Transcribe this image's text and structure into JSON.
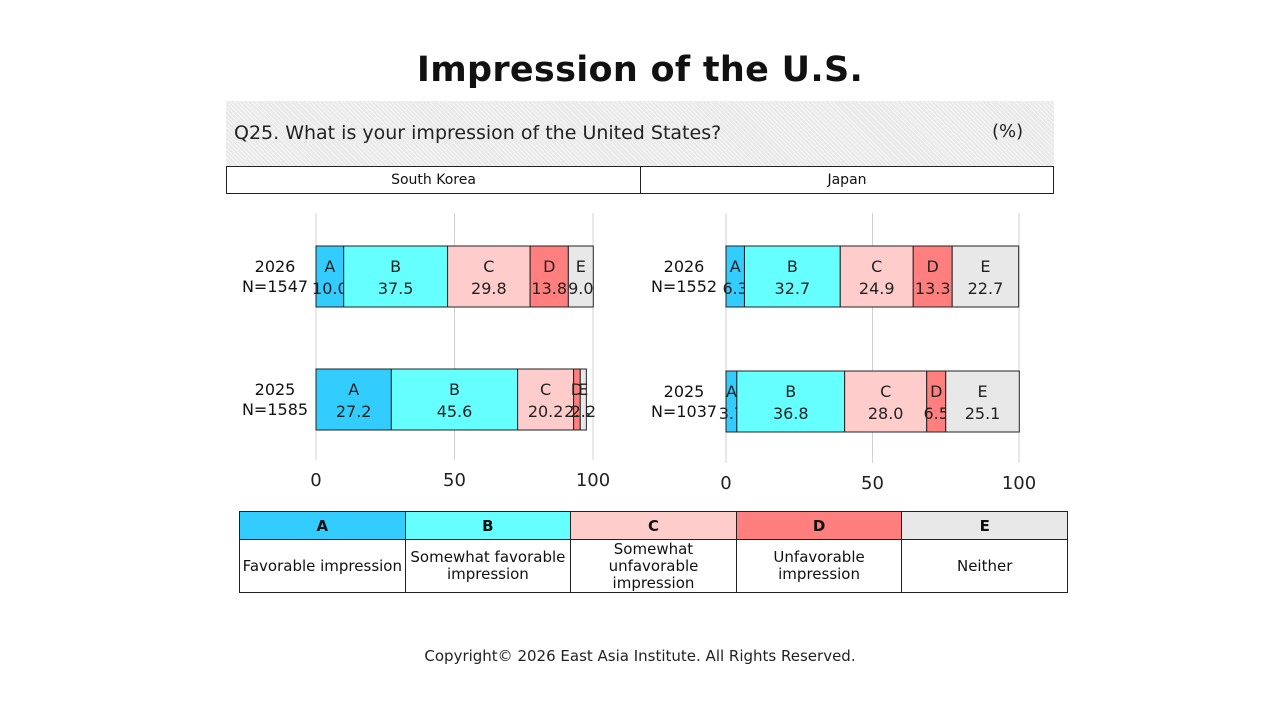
{
  "title": "Impression of the U.S.",
  "question": "Q25. What is your impression of the United States?",
  "unit": "(%)",
  "colors": {
    "A": "#33ccff",
    "B": "#66ffff",
    "C": "#ffcccc",
    "D": "#ff7f7f",
    "E": "#e8e8e8"
  },
  "legend": [
    {
      "key": "A",
      "label": "Favorable impression"
    },
    {
      "key": "B",
      "label": "Somewhat favorable impression"
    },
    {
      "key": "C",
      "label": "Somewhat unfavorable impression"
    },
    {
      "key": "D",
      "label": "Unfavorable impression"
    },
    {
      "key": "E",
      "label": "Neither"
    }
  ],
  "footer": "Copyright© 2026 East Asia Institute. All Rights Reserved.",
  "chart_data": [
    {
      "type": "bar",
      "orientation": "horizontal-stacked",
      "title": "South Korea",
      "xlim": [
        0,
        100
      ],
      "xticks": [
        "0",
        "50",
        "100"
      ],
      "segment_labels": [
        "A",
        "B",
        "C",
        "D",
        "E"
      ],
      "rows": [
        {
          "year": "2026",
          "n": "N=1547",
          "values": [
            "10.0",
            "37.5",
            "29.8",
            "13.8",
            "9.0"
          ]
        },
        {
          "year": "2025",
          "n": "N=1585",
          "values": [
            "27.2",
            "45.6",
            "20.2",
            "2.4",
            "2.2"
          ]
        }
      ]
    },
    {
      "type": "bar",
      "orientation": "horizontal-stacked",
      "title": "Japan",
      "xlim": [
        0,
        100
      ],
      "xticks": [
        "0",
        "50",
        "100"
      ],
      "segment_labels": [
        "A",
        "B",
        "C",
        "D",
        "E"
      ],
      "rows": [
        {
          "year": "2026",
          "n": "N=1552",
          "values": [
            "6.3",
            "32.7",
            "24.9",
            "13.3",
            "22.7"
          ]
        },
        {
          "year": "2025",
          "n": "N=1037",
          "values": [
            "3.7",
            "36.8",
            "28.0",
            "6.5",
            "25.1"
          ]
        }
      ]
    }
  ]
}
